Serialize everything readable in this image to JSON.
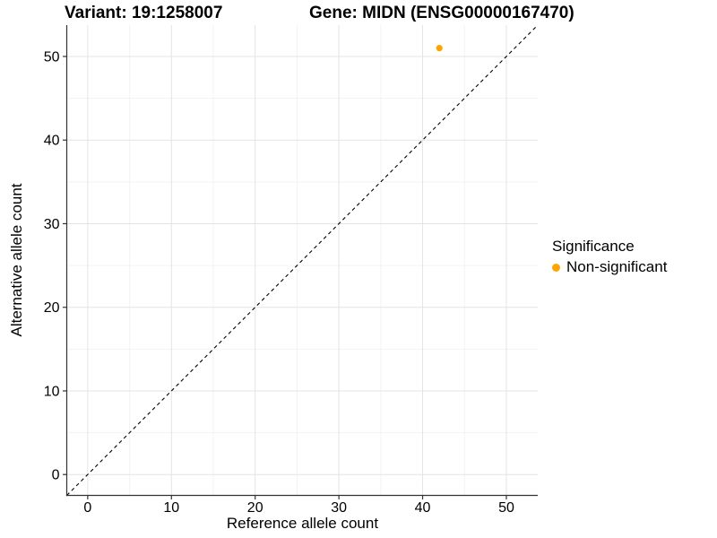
{
  "titles": {
    "variant": "Variant: 19:1258007",
    "gene": "Gene: MIDN (ENSG00000167470)"
  },
  "axes": {
    "x_label": "Reference allele count",
    "y_label": "Alternative allele count"
  },
  "legend": {
    "title": "Significance",
    "items": [
      {
        "label": "Non-significant",
        "color": "#FFA500"
      }
    ]
  },
  "colors": {
    "background": "#FFFFFF",
    "point": "#FFA500",
    "grid_major": "#E4E4E4",
    "grid_minor": "#F3F3F3",
    "axis_line": "#333333",
    "tick_mark": "#333333",
    "identity_line": "#000000",
    "text": "#000000"
  },
  "chart_data": {
    "type": "scatter",
    "title_left": "Variant: 19:1258007",
    "title_right": "Gene: MIDN (ENSG00000167470)",
    "xlabel": "Reference allele count",
    "ylabel": "Alternative allele count",
    "points": [
      {
        "x": 42,
        "y": 51,
        "series": "Non-significant",
        "color": "#FFA500"
      }
    ],
    "xlim": [
      -2.5,
      53.75
    ],
    "ylim": [
      -2.5,
      53.75
    ],
    "x_ticks": [
      0,
      10,
      20,
      30,
      40,
      50
    ],
    "y_ticks": [
      0,
      10,
      20,
      30,
      40,
      50
    ],
    "x_minor_ticks": [
      5,
      15,
      25,
      35,
      45
    ],
    "y_minor_ticks": [
      5,
      15,
      25,
      35,
      45
    ],
    "identity_line": {
      "slope": 1,
      "intercept": 0,
      "style": "dashed"
    },
    "grid": true,
    "legend_title": "Significance",
    "legend_entries": [
      "Non-significant"
    ],
    "legend_position": "right"
  }
}
